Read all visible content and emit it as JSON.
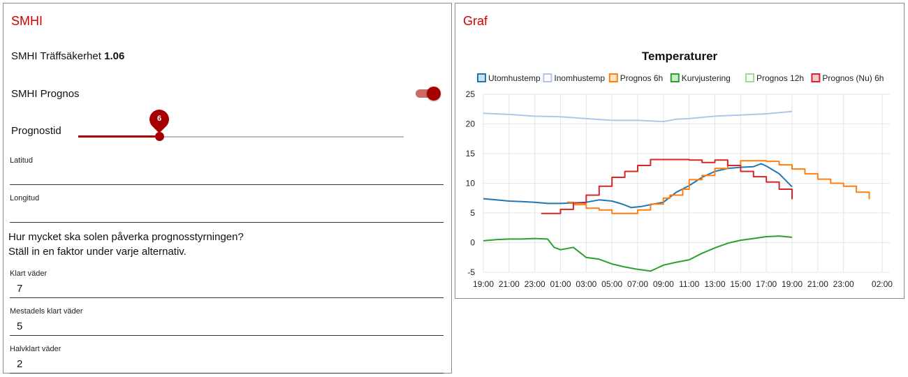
{
  "smhi_card": {
    "title": "SMHI",
    "accuracy_label": "SMHI Träffsäkerhet",
    "accuracy_value": "1.06",
    "prognos_label": "SMHI Prognos",
    "prognos_enabled": true,
    "prognostid_label": "Prognostid",
    "prognostid_value": 6,
    "prognostid_display": "6",
    "prognostid_fraction": 0.248,
    "latitud_label": "Latitud",
    "latitud_value": "",
    "longitud_label": "Longitud",
    "longitud_value": "",
    "sun_question": "Hur mycket ska solen påverka prognosstyrningen?",
    "sun_instruction": "Ställ in en faktor under varje alternativ.",
    "factors": [
      {
        "label": "Klart väder",
        "value": "7"
      },
      {
        "label": "Mestadels klart väder",
        "value": "5"
      },
      {
        "label": "Halvklart väder",
        "value": "2"
      }
    ],
    "accent_color": "#d40000",
    "slider_color": "#a80000"
  },
  "graf_card": {
    "title": "Graf"
  },
  "chart_data": {
    "type": "line",
    "title": "Temperaturer",
    "x_unit": "hours since 19:00",
    "xlim": [
      0,
      31.6
    ],
    "ylim": [
      -5,
      25
    ],
    "yticks": [
      25,
      20,
      15,
      10,
      5,
      0,
      -5
    ],
    "xticks": [
      {
        "x": 0,
        "label": "19:00"
      },
      {
        "x": 2,
        "label": "21:00"
      },
      {
        "x": 4,
        "label": "23:00"
      },
      {
        "x": 6,
        "label": "01:00"
      },
      {
        "x": 8,
        "label": "03:00"
      },
      {
        "x": 10,
        "label": "05:00"
      },
      {
        "x": 12,
        "label": "07:00"
      },
      {
        "x": 14,
        "label": "09:00"
      },
      {
        "x": 16,
        "label": "11:00"
      },
      {
        "x": 18,
        "label": "13:00"
      },
      {
        "x": 20,
        "label": "15:00"
      },
      {
        "x": 22,
        "label": "17:00"
      },
      {
        "x": 24,
        "label": "19:00"
      },
      {
        "x": 26,
        "label": "21:00"
      },
      {
        "x": 28,
        "label": "23:00"
      },
      {
        "x": 31,
        "label": "02:00"
      }
    ],
    "grid": true,
    "legend_position": "top",
    "series": [
      {
        "name": "Utomhustemp",
        "color": "#1f77b4",
        "fill": "#cfe0f0",
        "step": false,
        "points": [
          [
            0,
            7.4
          ],
          [
            1,
            7.2
          ],
          [
            2,
            7.0
          ],
          [
            3,
            6.9
          ],
          [
            4,
            6.8
          ],
          [
            5,
            6.6
          ],
          [
            6,
            6.6
          ],
          [
            7,
            6.7
          ],
          [
            8,
            6.8
          ],
          [
            9,
            7.2
          ],
          [
            10,
            7.0
          ],
          [
            10.8,
            6.5
          ],
          [
            11.5,
            5.9
          ],
          [
            12.3,
            6.1
          ],
          [
            13,
            6.4
          ],
          [
            14,
            6.8
          ],
          [
            15,
            8.5
          ],
          [
            16,
            9.6
          ],
          [
            17,
            11.0
          ],
          [
            18,
            12.0
          ],
          [
            19,
            12.5
          ],
          [
            20,
            12.7
          ],
          [
            21,
            12.8
          ],
          [
            21.6,
            13.3
          ],
          [
            22,
            12.9
          ],
          [
            23,
            11.6
          ],
          [
            24,
            9.4
          ]
        ]
      },
      {
        "name": "Inomhustemp",
        "color": "#aec7e8",
        "fill": "#ffffff",
        "step": false,
        "points": [
          [
            0,
            21.8
          ],
          [
            2,
            21.6
          ],
          [
            4,
            21.3
          ],
          [
            6,
            21.2
          ],
          [
            8,
            20.9
          ],
          [
            10,
            20.6
          ],
          [
            12,
            20.6
          ],
          [
            14,
            20.4
          ],
          [
            15,
            20.8
          ],
          [
            16,
            20.9
          ],
          [
            18,
            21.3
          ],
          [
            20,
            21.5
          ],
          [
            22,
            21.7
          ],
          [
            24,
            22.1
          ]
        ]
      },
      {
        "name": "Prognos 6h",
        "color": "#ff7f0e",
        "fill": "#ffe3c8",
        "step": true,
        "points": [
          [
            6.5,
            6.8
          ],
          [
            7,
            6.4
          ],
          [
            8,
            5.8
          ],
          [
            9,
            5.5
          ],
          [
            10,
            4.9
          ],
          [
            12,
            5.5
          ],
          [
            13,
            6.5
          ],
          [
            14,
            7.5
          ],
          [
            14.5,
            8.0
          ],
          [
            15.5,
            9.0
          ],
          [
            16,
            10.6
          ],
          [
            17,
            11.3
          ],
          [
            18,
            12.5
          ],
          [
            19,
            13.0
          ],
          [
            20,
            13.8
          ],
          [
            21,
            13.8
          ],
          [
            22,
            13.7
          ],
          [
            23,
            13.1
          ],
          [
            24,
            12.4
          ],
          [
            25,
            11.6
          ],
          [
            26,
            10.7
          ],
          [
            27,
            10.0
          ],
          [
            28,
            9.5
          ],
          [
            29,
            8.5
          ],
          [
            30,
            7.3
          ]
        ]
      },
      {
        "name": "Kurvjustering",
        "color": "#2ca02c",
        "fill": "#c9ebc5",
        "step": false,
        "points": [
          [
            0,
            0.3
          ],
          [
            1,
            0.5
          ],
          [
            2,
            0.6
          ],
          [
            3,
            0.6
          ],
          [
            4,
            0.7
          ],
          [
            5,
            0.6
          ],
          [
            5.5,
            -0.8
          ],
          [
            6,
            -1.2
          ],
          [
            7,
            -0.8
          ],
          [
            8,
            -2.5
          ],
          [
            9,
            -2.8
          ],
          [
            10,
            -3.6
          ],
          [
            11,
            -4.1
          ],
          [
            12,
            -4.5
          ],
          [
            13,
            -4.8
          ],
          [
            13.5,
            -4.3
          ],
          [
            14,
            -3.8
          ],
          [
            15,
            -3.3
          ],
          [
            16,
            -2.9
          ],
          [
            17,
            -1.8
          ],
          [
            18,
            -0.9
          ],
          [
            19,
            -0.1
          ],
          [
            20,
            0.4
          ],
          [
            21,
            0.7
          ],
          [
            22,
            1.0
          ],
          [
            23,
            1.1
          ],
          [
            24,
            0.9
          ]
        ]
      },
      {
        "name": "Prognos 12h",
        "color": "#98df8a",
        "fill": "#ffffff",
        "step": false,
        "points": []
      },
      {
        "name": "Prognos (Nu) 6h",
        "color": "#d62728",
        "fill": "#f5c9c9",
        "step": true,
        "points": [
          [
            4.5,
            4.9
          ],
          [
            6,
            5.6
          ],
          [
            7,
            6.7
          ],
          [
            8,
            8.0
          ],
          [
            9,
            9.5
          ],
          [
            10,
            11.0
          ],
          [
            11,
            12.0
          ],
          [
            12,
            13.0
          ],
          [
            13,
            14.0
          ],
          [
            15,
            14.0
          ],
          [
            16,
            13.9
          ],
          [
            17,
            13.5
          ],
          [
            18,
            13.9
          ],
          [
            19,
            13.0
          ],
          [
            20,
            12.0
          ],
          [
            21,
            11.1
          ],
          [
            22,
            10.2
          ],
          [
            23,
            9.0
          ],
          [
            24,
            7.3
          ]
        ]
      }
    ]
  }
}
